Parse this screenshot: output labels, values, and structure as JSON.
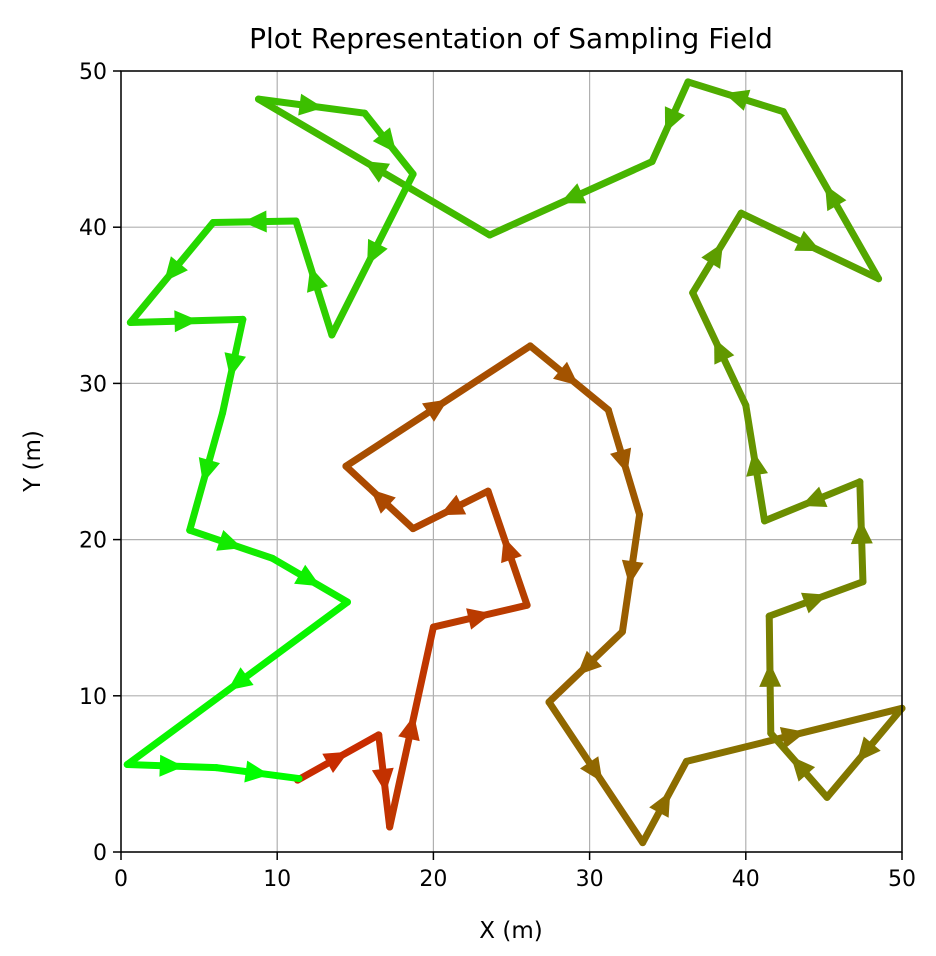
{
  "chart_data": {
    "type": "line",
    "title": "Plot Representation of Sampling Field",
    "xlabel": "X (m)",
    "ylabel": "Y (m)",
    "xlim": [
      0,
      50
    ],
    "ylim": [
      0,
      50
    ],
    "xticks": [
      "0",
      "10",
      "20",
      "30",
      "40",
      "50"
    ],
    "yticks": [
      "0",
      "10",
      "20",
      "30",
      "40",
      "50"
    ],
    "grid": true,
    "color_start": "#c82c00",
    "color_end": "#00ff00",
    "path": [
      [
        11.3,
        4.6
      ],
      [
        16.5,
        7.5
      ],
      [
        17.2,
        1.6
      ],
      [
        20.0,
        14.4
      ],
      [
        26.0,
        15.8
      ],
      [
        23.5,
        23.1
      ],
      [
        18.7,
        20.7
      ],
      [
        14.4,
        24.7
      ],
      [
        26.2,
        32.4
      ],
      [
        31.2,
        28.3
      ],
      [
        33.2,
        21.6
      ],
      [
        32.1,
        14.1
      ],
      [
        27.4,
        9.6
      ],
      [
        33.4,
        0.6
      ],
      [
        36.2,
        5.8
      ],
      [
        50.0,
        9.2
      ],
      [
        45.2,
        3.5
      ],
      [
        41.6,
        7.6
      ],
      [
        41.5,
        15.1
      ],
      [
        47.5,
        17.3
      ],
      [
        47.3,
        23.7
      ],
      [
        41.2,
        21.2
      ],
      [
        40.0,
        28.6
      ],
      [
        36.6,
        35.8
      ],
      [
        39.7,
        40.9
      ],
      [
        48.5,
        36.7
      ],
      [
        42.4,
        47.4
      ],
      [
        36.3,
        49.3
      ],
      [
        34.0,
        44.2
      ],
      [
        23.6,
        39.5
      ],
      [
        8.8,
        48.2
      ],
      [
        15.6,
        47.3
      ],
      [
        18.7,
        43.4
      ],
      [
        13.5,
        33.1
      ],
      [
        11.2,
        40.4
      ],
      [
        5.9,
        40.3
      ],
      [
        0.6,
        33.9
      ],
      [
        7.8,
        34.1
      ],
      [
        6.5,
        28.1
      ],
      [
        4.4,
        20.6
      ],
      [
        9.7,
        18.8
      ],
      [
        14.5,
        16.0
      ],
      [
        0.4,
        5.6
      ],
      [
        6.1,
        5.4
      ],
      [
        11.4,
        4.7
      ]
    ]
  }
}
